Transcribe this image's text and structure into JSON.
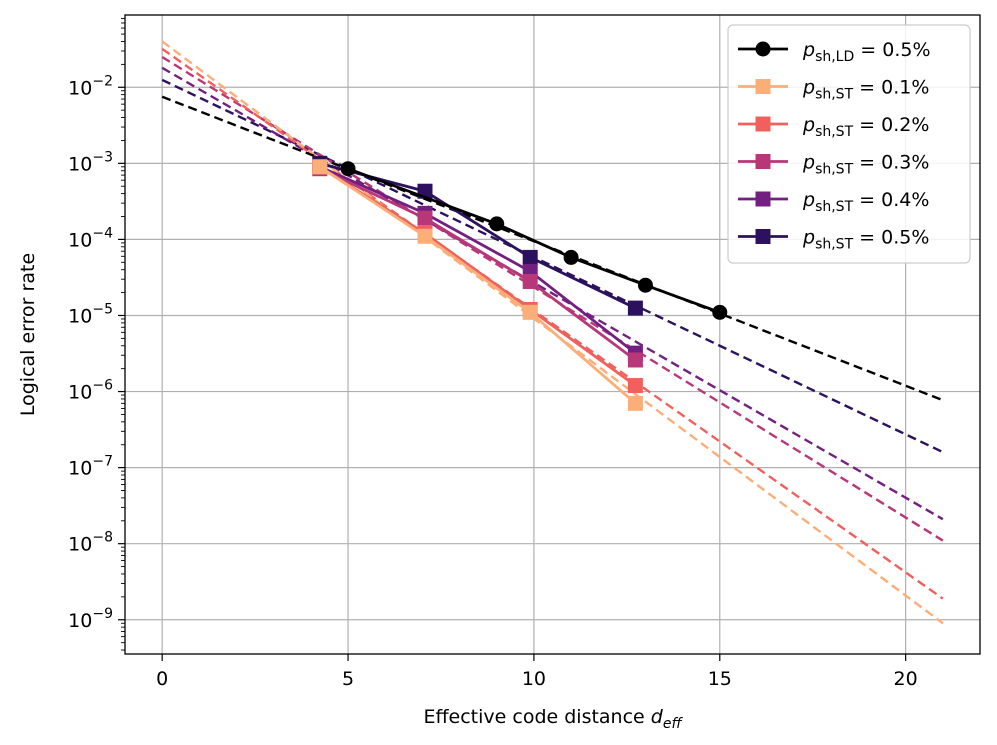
{
  "chart_data": {
    "type": "line",
    "title": "",
    "xlabel_main": "Effective code distance ",
    "xlabel_var": "d",
    "xlabel_sub": "eff",
    "ylabel": "Logical error rate",
    "xlim": [
      -1,
      22
    ],
    "ylim_log10": [
      -9.45,
      -1.05
    ],
    "x_ticks": [
      0,
      5,
      10,
      15,
      20
    ],
    "y_ticks_log10": [
      -2,
      -3,
      -4,
      -5,
      -6,
      -7,
      -8,
      -9
    ],
    "y_tick_base": "10",
    "y_tick_exponents": [
      "−2",
      "−3",
      "−4",
      "−5",
      "−6",
      "−7",
      "−8",
      "−9"
    ],
    "grid": true,
    "legend_position": "top-right",
    "series": [
      {
        "name": "p_sh,LD = 0.5%",
        "legend_p": "p",
        "legend_sub": "sh,LD",
        "legend_value": " = 0.5%",
        "color": "#000000",
        "marker": "circle",
        "x": [
          5,
          9,
          11,
          13,
          15
        ],
        "y": [
          0.00085,
          0.00016,
          5.8e-05,
          2.5e-05,
          1.1e-05
        ],
        "fit": {
          "x0": 0,
          "y0": 0.0075,
          "x1": 21,
          "y1": 7.7e-07
        }
      },
      {
        "name": "p_sh,ST = 0.1%",
        "legend_p": "p",
        "legend_sub": "sh,ST",
        "legend_value": " = 0.1%",
        "color": "#fcae78",
        "marker": "square",
        "x": [
          4.24,
          7.07,
          9.9,
          12.73
        ],
        "y": [
          0.0009,
          0.00011,
          1.1e-05,
          7e-07
        ],
        "fit": {
          "x0": 0,
          "y0": 0.04,
          "x1": 21,
          "y1": 9e-10
        }
      },
      {
        "name": "p_sh,ST = 0.2%",
        "legend_p": "p",
        "legend_sub": "sh,ST",
        "legend_value": " = 0.2%",
        "color": "#f1605d",
        "marker": "square",
        "x": [
          4.24,
          7.07,
          9.9,
          12.73
        ],
        "y": [
          0.0009,
          0.00012,
          1.2e-05,
          1.2e-06
        ],
        "fit": {
          "x0": 0,
          "y0": 0.032,
          "x1": 21,
          "y1": 1.9e-09
        }
      },
      {
        "name": "p_sh,ST = 0.3%",
        "legend_p": "p",
        "legend_sub": "sh,ST",
        "legend_value": " = 0.3%",
        "color": "#b73779",
        "marker": "square",
        "x": [
          4.24,
          7.07,
          9.9,
          12.73
        ],
        "y": [
          0.00085,
          0.00019,
          2.8e-05,
          2.6e-06
        ],
        "fit": {
          "x0": 0,
          "y0": 0.025,
          "x1": 21,
          "y1": 1.1e-08
        }
      },
      {
        "name": "p_sh,ST = 0.4%",
        "legend_p": "p",
        "legend_sub": "sh,ST",
        "legend_value": " = 0.4%",
        "color": "#721f81",
        "marker": "square",
        "x": [
          4.24,
          7.07,
          9.9,
          12.73
        ],
        "y": [
          0.0009,
          0.00022,
          3.8e-05,
          3.2e-06
        ],
        "fit": {
          "x0": 0,
          "y0": 0.018,
          "x1": 21,
          "y1": 2.1e-08
        }
      },
      {
        "name": "p_sh,ST = 0.5%",
        "legend_p": "p",
        "legend_sub": "sh,ST",
        "legend_value": " = 0.5%",
        "color": "#2c115f",
        "marker": "square",
        "x": [
          4.24,
          7.07,
          9.9,
          12.73
        ],
        "y": [
          0.001,
          0.00043,
          5.8e-05,
          1.25e-05
        ],
        "fit": {
          "x0": 0,
          "y0": 0.0125,
          "x1": 21,
          "y1": 1.6e-07
        }
      }
    ]
  }
}
